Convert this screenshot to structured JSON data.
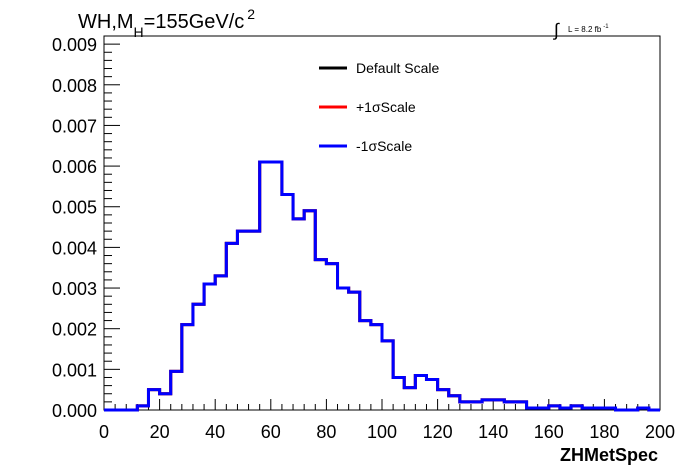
{
  "title": {
    "main": "WH,M",
    "sub": "H",
    "rest": "=155GeV/c",
    "sup": "2"
  },
  "lumi": {
    "integral_symbol": "∫",
    "text": "L = 8.2 fb",
    "sup": "-1"
  },
  "chart_data": {
    "type": "line",
    "style": "step-histogram",
    "xlabel": "ZHMetSpec",
    "ylabel": "",
    "xlim": [
      0,
      200
    ],
    "ylim": [
      0,
      0.0092
    ],
    "grid": false,
    "legend_position": "top-center",
    "x_ticks": [
      "0",
      "20",
      "40",
      "60",
      "80",
      "100",
      "120",
      "140",
      "160",
      "180",
      "200"
    ],
    "y_ticks": [
      "0.000",
      "0.001",
      "0.002",
      "0.003",
      "0.004",
      "0.005",
      "0.006",
      "0.007",
      "0.008",
      "0.009"
    ],
    "bin_edges": [
      0,
      4,
      8,
      12,
      16,
      20,
      24,
      28,
      32,
      36,
      40,
      44,
      48,
      52,
      56,
      60,
      64,
      68,
      72,
      76,
      80,
      84,
      88,
      92,
      96,
      100,
      104,
      108,
      112,
      116,
      120,
      124,
      128,
      132,
      136,
      140,
      144,
      148,
      152,
      156,
      160,
      164,
      168,
      172,
      176,
      180,
      184,
      188,
      192,
      196,
      200
    ],
    "series": [
      {
        "name": "Default Scale",
        "color": "#000000",
        "values": [
          0,
          0,
          0,
          0.0001,
          0.0005,
          0.0004,
          0.00095,
          0.0021,
          0.0026,
          0.0031,
          0.0033,
          0.0041,
          0.0044,
          0.0044,
          0.0061,
          0.0061,
          0.0053,
          0.0047,
          0.0049,
          0.0037,
          0.0036,
          0.003,
          0.0029,
          0.0022,
          0.0021,
          0.0017,
          0.0008,
          0.00055,
          0.00085,
          0.00075,
          0.0005,
          0.00035,
          0.0002,
          0.0002,
          0.00025,
          0.00025,
          0.0002,
          0.0002,
          5e-05,
          5e-05,
          0.0001,
          5e-05,
          0.0001,
          5e-05,
          5e-05,
          5e-05,
          0,
          0,
          5e-05,
          0
        ]
      },
      {
        "name": "+1σScale",
        "color": "#ff0000",
        "values": [
          0,
          0,
          0,
          0.0001,
          0.0005,
          0.0004,
          0.00095,
          0.0021,
          0.0026,
          0.0031,
          0.0033,
          0.0041,
          0.0044,
          0.0044,
          0.0061,
          0.0061,
          0.0053,
          0.0047,
          0.0049,
          0.0037,
          0.0036,
          0.003,
          0.0029,
          0.0022,
          0.0021,
          0.0017,
          0.0008,
          0.00055,
          0.00085,
          0.00075,
          0.0005,
          0.00035,
          0.0002,
          0.0002,
          0.00025,
          0.00025,
          0.0002,
          0.0002,
          5e-05,
          5e-05,
          0.0001,
          5e-05,
          0.0001,
          5e-05,
          5e-05,
          5e-05,
          0,
          0,
          5e-05,
          0
        ]
      },
      {
        "name": "-1σScale",
        "color": "#0000ff",
        "values": [
          0,
          0,
          0,
          0.0001,
          0.0005,
          0.0004,
          0.00095,
          0.0021,
          0.0026,
          0.0031,
          0.0033,
          0.0041,
          0.0044,
          0.0044,
          0.0061,
          0.0061,
          0.0053,
          0.0047,
          0.0049,
          0.0037,
          0.0036,
          0.003,
          0.0029,
          0.0022,
          0.0021,
          0.0017,
          0.0008,
          0.00055,
          0.00085,
          0.00075,
          0.0005,
          0.00035,
          0.0002,
          0.0002,
          0.00025,
          0.00025,
          0.0002,
          0.0002,
          5e-05,
          5e-05,
          0.0001,
          5e-05,
          0.0001,
          5e-05,
          5e-05,
          5e-05,
          0,
          0,
          5e-05,
          0
        ]
      }
    ]
  }
}
